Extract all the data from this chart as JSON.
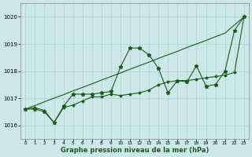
{
  "x": [
    0,
    1,
    2,
    3,
    4,
    5,
    6,
    7,
    8,
    9,
    10,
    11,
    12,
    13,
    14,
    15,
    16,
    17,
    18,
    19,
    20,
    21,
    22,
    23
  ],
  "trend_line": [
    1016.6,
    1016.73,
    1016.87,
    1017.0,
    1017.13,
    1017.27,
    1017.4,
    1017.53,
    1017.67,
    1017.8,
    1017.93,
    1018.07,
    1018.2,
    1018.33,
    1018.47,
    1018.6,
    1018.73,
    1018.87,
    1019.0,
    1019.13,
    1019.27,
    1019.4,
    1019.7,
    1020.0
  ],
  "series_star": [
    1016.6,
    1016.6,
    1016.5,
    1016.1,
    1016.7,
    1017.15,
    1017.15,
    1017.15,
    1017.2,
    1017.25,
    1018.15,
    1018.85,
    1018.85,
    1018.6,
    1018.1,
    1017.2,
    1017.65,
    1017.6,
    1018.2,
    1017.45,
    1017.5,
    1018.0,
    1019.5,
    1020.0
  ],
  "series_dot": [
    1016.6,
    1016.65,
    1016.55,
    1016.1,
    1016.65,
    1016.75,
    1016.9,
    1017.05,
    1017.05,
    1017.15,
    1017.1,
    1017.15,
    1017.2,
    1017.3,
    1017.5,
    1017.6,
    1017.65,
    1017.65,
    1017.7,
    1017.75,
    1017.8,
    1017.85,
    1017.95,
    1020.0
  ],
  "ylim": [
    1015.5,
    1020.5
  ],
  "yticks": [
    1016,
    1017,
    1018,
    1019,
    1020
  ],
  "xlim": [
    -0.5,
    23.5
  ],
  "xticks": [
    0,
    1,
    2,
    3,
    4,
    5,
    6,
    7,
    8,
    9,
    10,
    11,
    12,
    13,
    14,
    15,
    16,
    17,
    18,
    19,
    20,
    21,
    22,
    23
  ],
  "xlabel": "Graphe pression niveau de la mer (hPa)",
  "line_color": "#1a5c1a",
  "bg_color": "#cce8e8",
  "grid_color": "#aad4d4",
  "xlabel_color": "#1a5c1a"
}
